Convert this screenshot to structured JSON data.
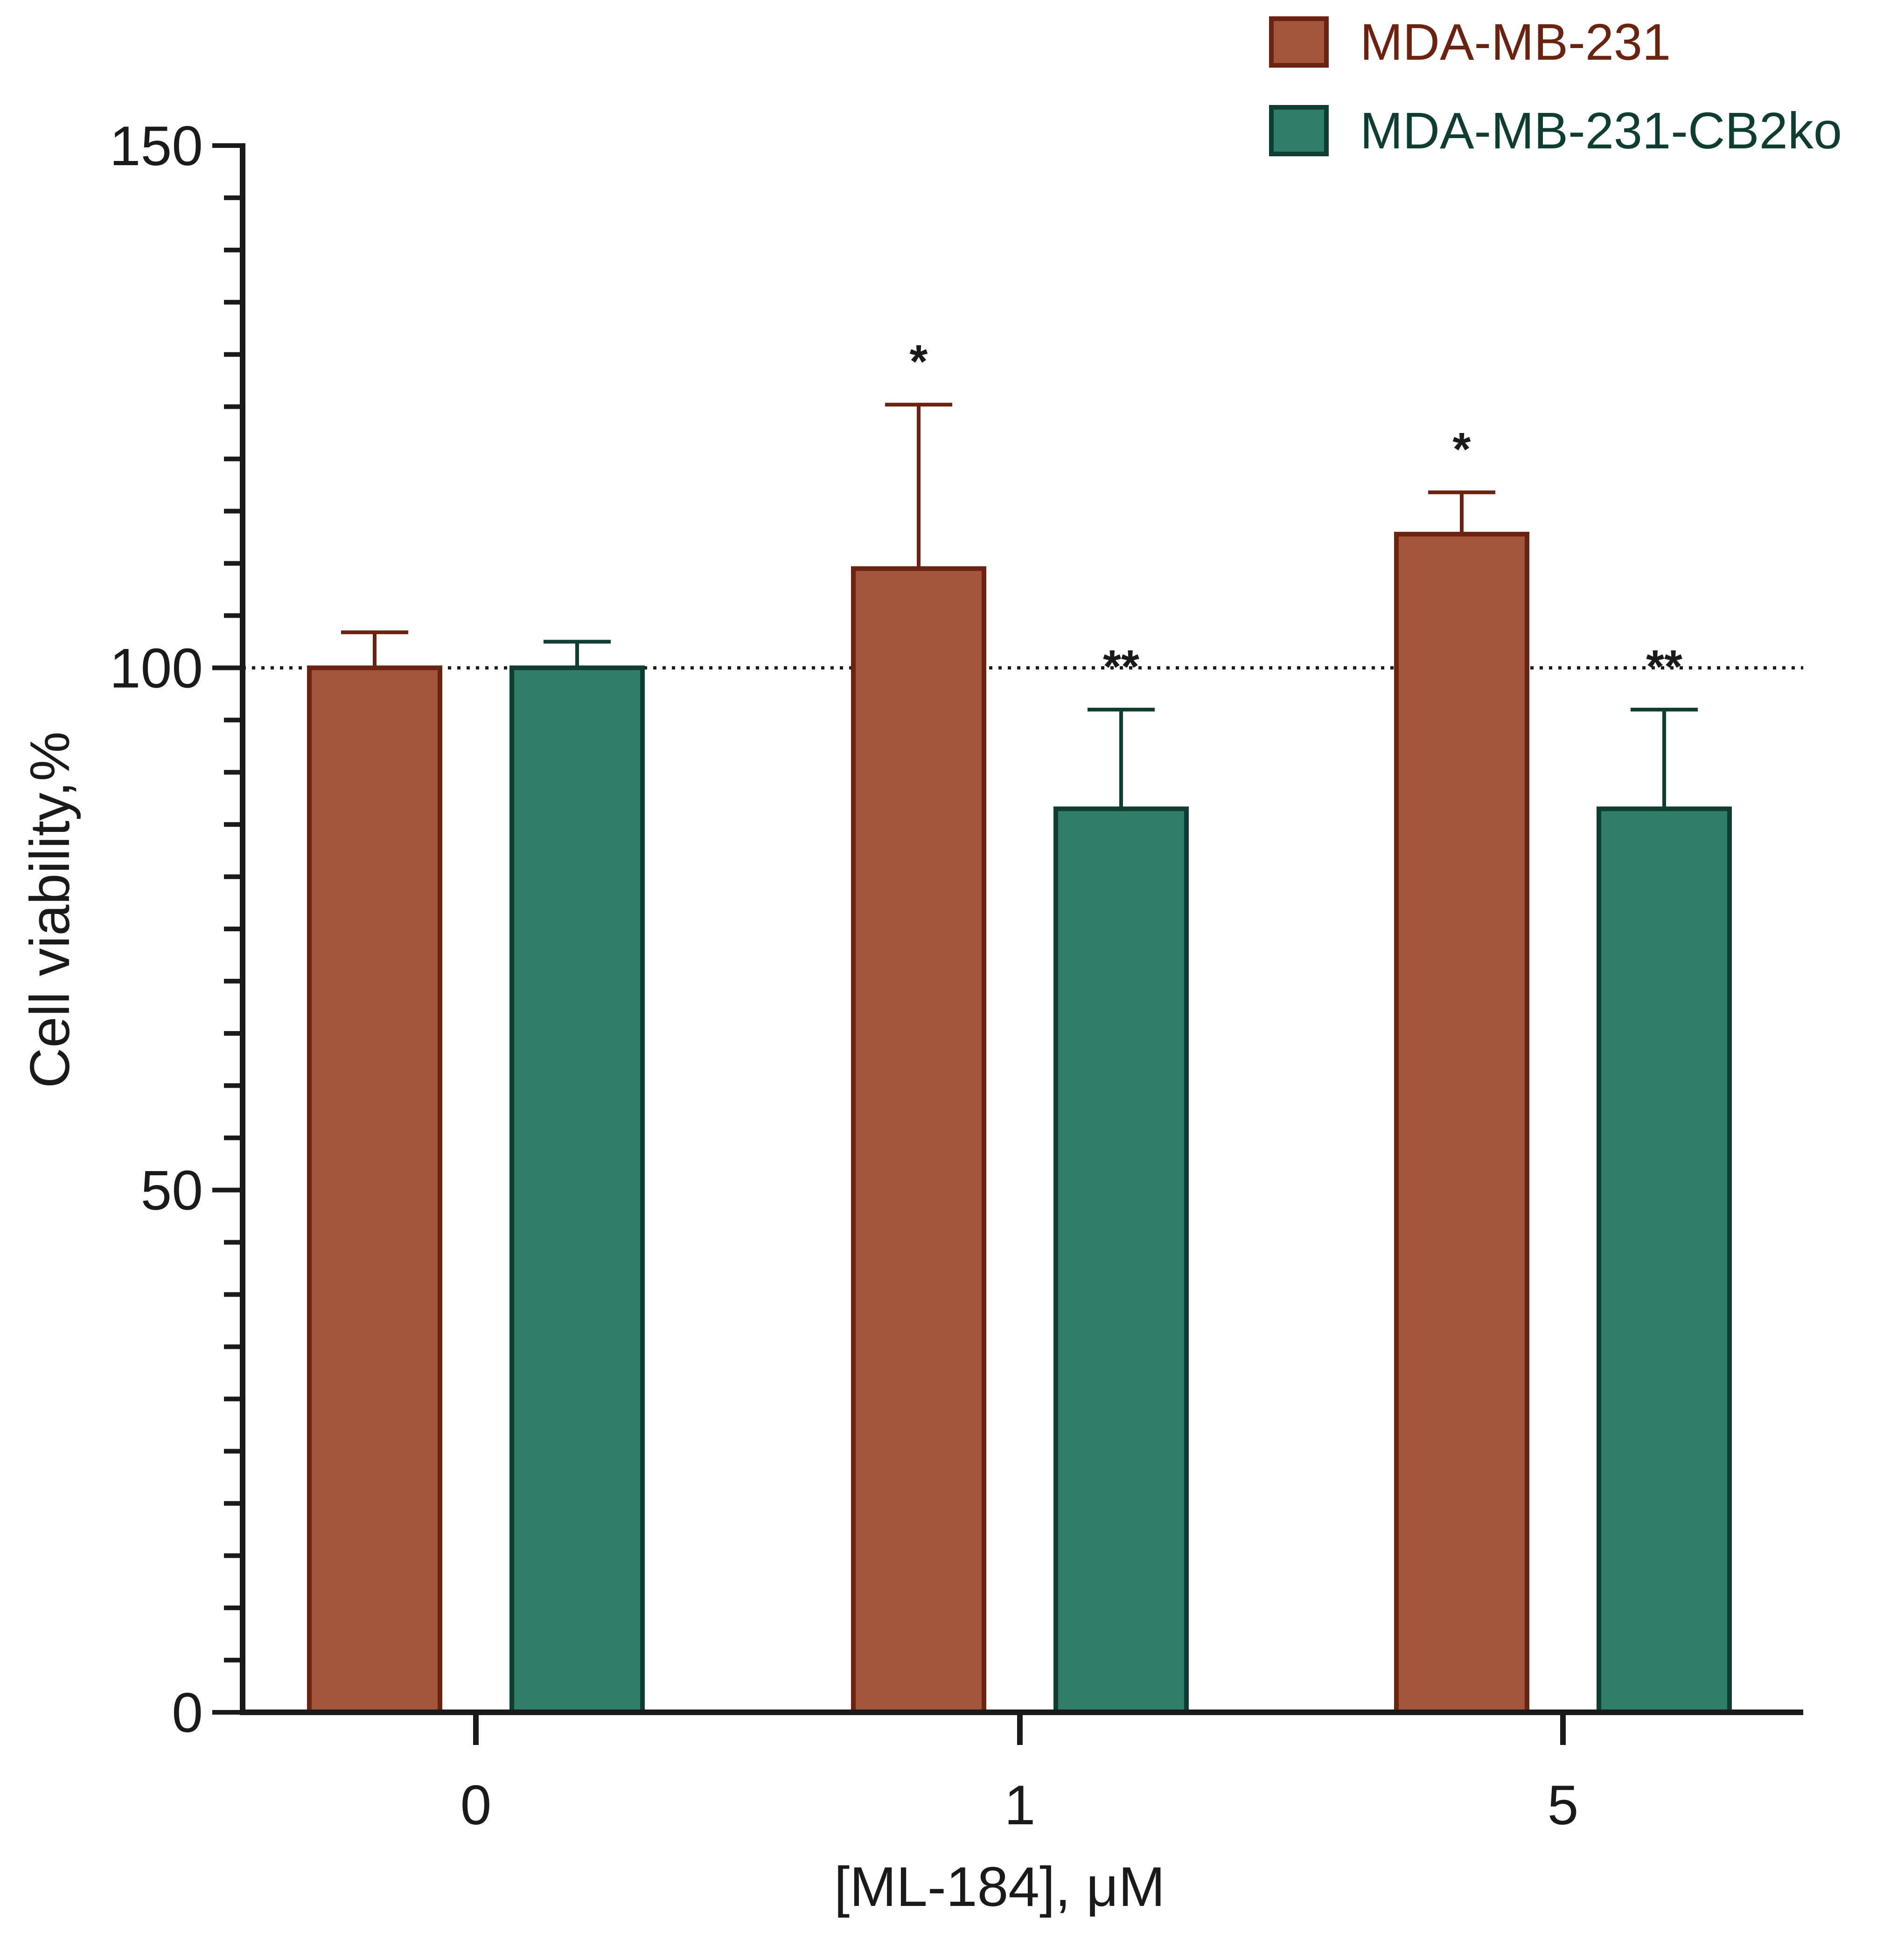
{
  "chart_data": {
    "type": "bar",
    "categories": [
      "0",
      "1",
      "5"
    ],
    "series": [
      {
        "name": "MDA-MB-231",
        "fill": "#a3553b",
        "stroke": "#6b2311",
        "values": [
          100,
          109.5,
          112.8
        ],
        "errors": [
          3.4,
          15.7,
          4.0
        ],
        "annotations": [
          "",
          "*",
          "*"
        ]
      },
      {
        "name": "MDA-MB-231-CB2ko",
        "fill": "#2e7e69",
        "stroke": "#0f3d31",
        "values": [
          100,
          86.5,
          86.5
        ],
        "errors": [
          2.5,
          9.5,
          9.5
        ],
        "annotations": [
          "",
          "**",
          "**"
        ]
      }
    ],
    "ylim": [
      0,
      150
    ],
    "yticks": [
      0,
      50,
      100,
      150
    ],
    "yticks_minor_step": 5,
    "reference_line": 100,
    "xlabel": "[ML-184], μM",
    "ylabel": "Cell viability,%",
    "legend_position": "top-right"
  }
}
